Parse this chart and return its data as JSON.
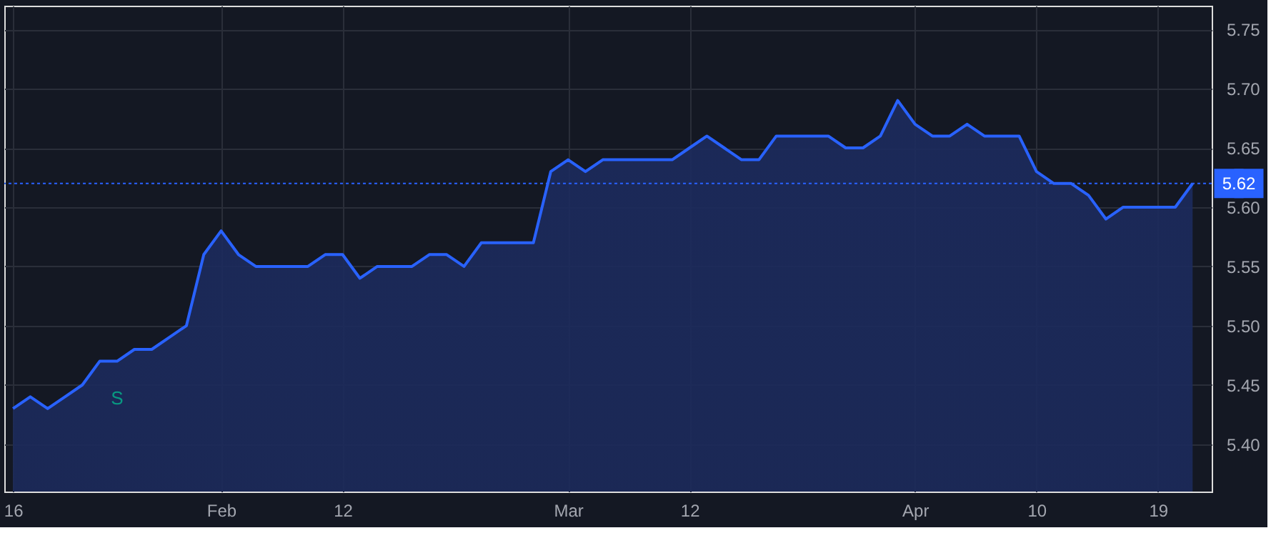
{
  "chart_data": {
    "type": "area",
    "categories": [
      "16",
      null,
      null,
      null,
      null,
      null,
      null,
      null,
      null,
      null,
      null,
      null,
      "Feb",
      null,
      null,
      null,
      null,
      null,
      null,
      "12",
      null,
      null,
      null,
      null,
      null,
      null,
      null,
      null,
      null,
      null,
      null,
      null,
      "Mar",
      null,
      null,
      null,
      null,
      null,
      null,
      "12",
      null,
      null,
      null,
      null,
      null,
      null,
      null,
      null,
      null,
      null,
      null,
      null,
      "Apr",
      null,
      null,
      null,
      null,
      null,
      null,
      "10",
      null,
      null,
      null,
      null,
      null,
      null,
      "19",
      null,
      null
    ],
    "series": [
      {
        "color": "#2962ff",
        "values": [
          5.43,
          5.44,
          5.43,
          5.44,
          5.45,
          5.47,
          5.47,
          5.48,
          5.48,
          5.49,
          5.5,
          5.56,
          5.58,
          5.56,
          5.55,
          5.55,
          5.55,
          5.55,
          5.56,
          5.56,
          5.54,
          5.55,
          5.55,
          5.55,
          5.56,
          5.56,
          5.55,
          5.57,
          5.57,
          5.57,
          5.57,
          5.63,
          5.64,
          5.63,
          5.64,
          5.64,
          5.64,
          5.64,
          5.64,
          5.65,
          5.66,
          5.65,
          5.64,
          5.64,
          5.66,
          5.66,
          5.66,
          5.66,
          5.65,
          5.65,
          5.66,
          5.69,
          5.67,
          5.66,
          5.66,
          5.67,
          5.66,
          5.66,
          5.66,
          5.63,
          5.62,
          5.62,
          5.61,
          5.59,
          5.6,
          5.6,
          5.6,
          5.6,
          5.62
        ]
      }
    ],
    "ylim": [
      5.36,
      5.77
    ],
    "yticks": [
      {
        "value": 5.4,
        "label": "5.40"
      },
      5.45,
      {
        "value": 5.5,
        "label": "5.50"
      },
      5.55,
      {
        "value": 5.6,
        "label": "5.60"
      },
      5.65,
      {
        "value": 5.7,
        "label": "5.70"
      },
      5.75
    ],
    "ref_lines": [
      {
        "axis": "y",
        "value": 5.62,
        "label": "5.62",
        "color": "#2962ff",
        "line_style": "dotted"
      }
    ],
    "annotations": [
      "S"
    ],
    "grid": true
  }
}
